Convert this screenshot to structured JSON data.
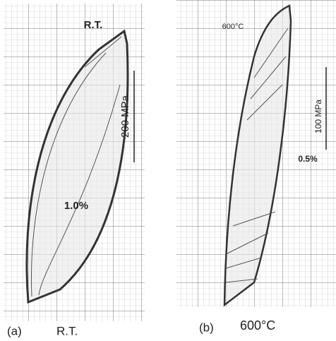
{
  "panels": [
    {
      "top_label": "R.T.",
      "stress_scale": "200 MPa",
      "strain_scale": "1.0%",
      "caption_letter": "(a)",
      "caption_text": "R.T."
    },
    {
      "top_label": "600°C",
      "stress_scale": "100 MPa",
      "strain_scale": "0.5%",
      "caption_letter": "(b)",
      "caption_text": "600°C"
    }
  ]
}
